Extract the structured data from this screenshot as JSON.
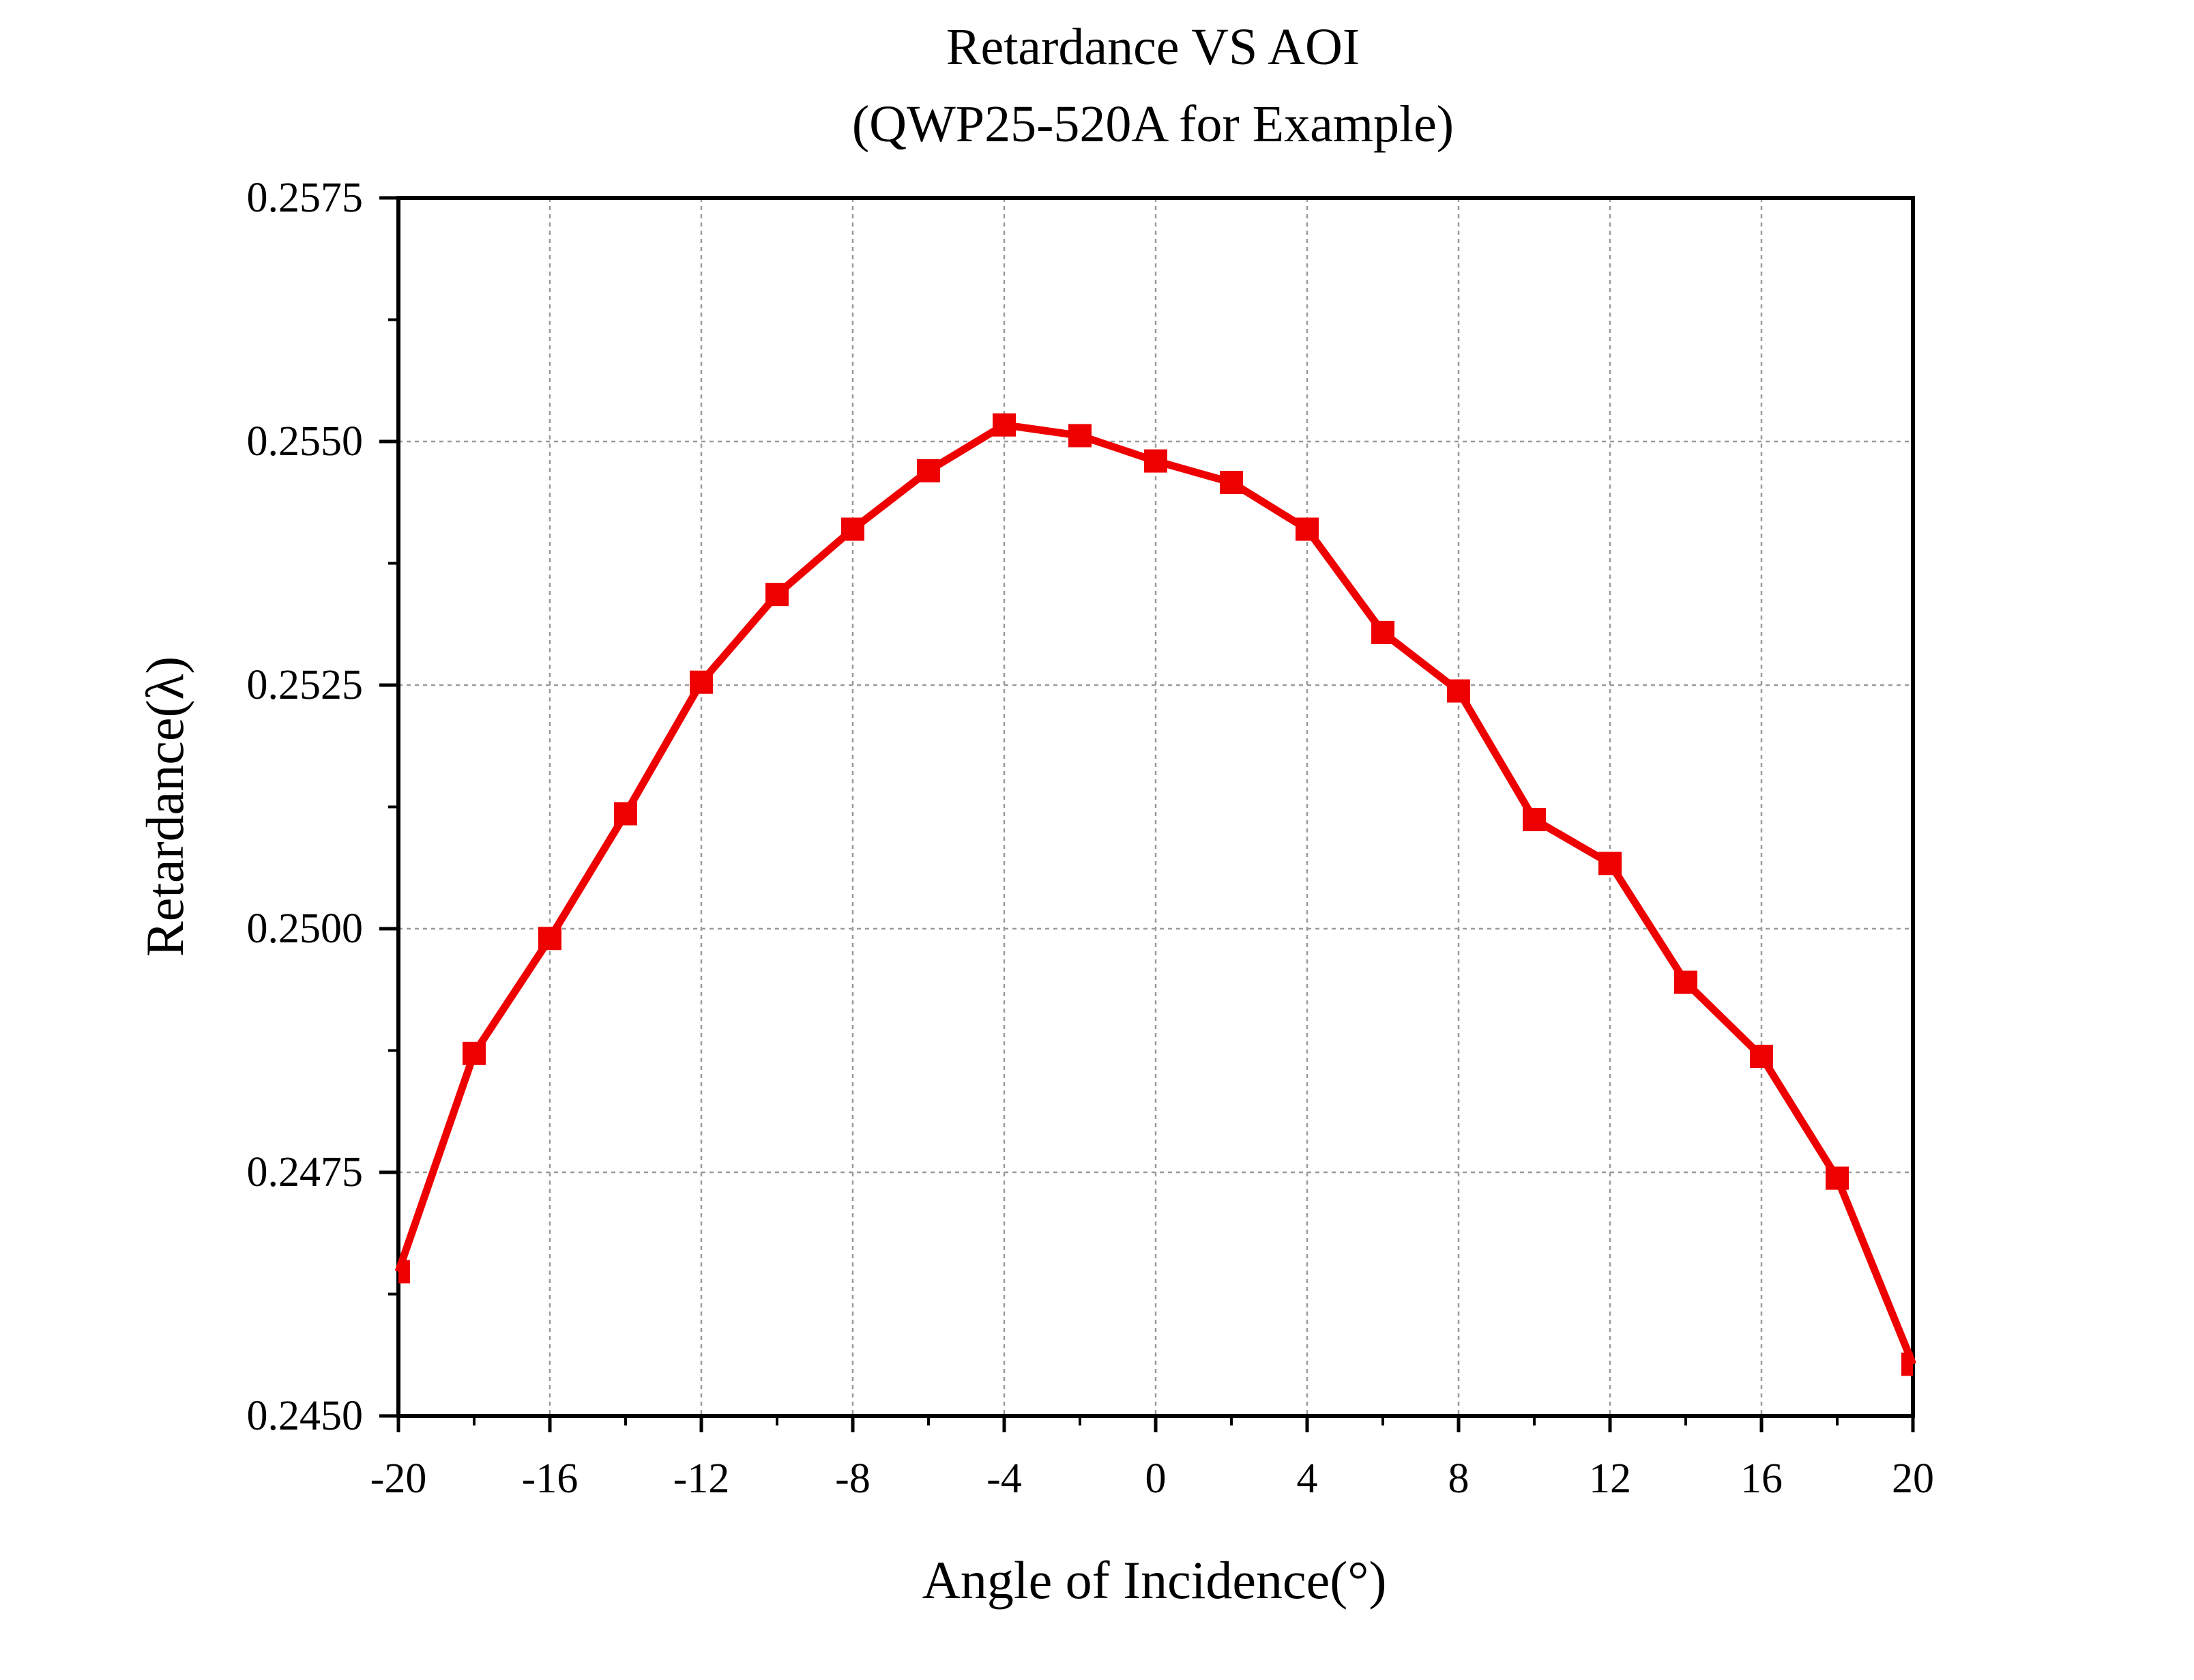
{
  "chart_data": {
    "type": "line",
    "title": "Retardance VS AOI",
    "subtitle": "(QWP25-520A for Example)",
    "xlabel": "Angle of Incidence(°)",
    "ylabel": "Retardance(λ)",
    "xlim": [
      -20,
      20
    ],
    "ylim": [
      0.245,
      0.2575
    ],
    "x_ticks": [
      -20,
      -16,
      -12,
      -8,
      -4,
      0,
      4,
      8,
      12,
      16,
      20
    ],
    "x_tick_labels": [
      "-20",
      "-16",
      "-12",
      "-8",
      "-4",
      "0",
      "4",
      "8",
      "12",
      "16",
      "20"
    ],
    "y_ticks": [
      0.245,
      0.2475,
      0.25,
      0.2525,
      0.255,
      0.2575
    ],
    "y_tick_labels": [
      "0.2450",
      "0.2475",
      "0.2500",
      "0.2525",
      "0.2550",
      "0.2575"
    ],
    "grid": true,
    "legend": "none",
    "series": [
      {
        "color": "#ee0000",
        "marker": "square",
        "x": [
          -20,
          -18,
          -16,
          -14,
          -12,
          -10,
          -8,
          -6,
          -4,
          -2,
          0,
          2,
          4,
          6,
          8,
          10,
          12,
          14,
          16,
          18,
          20
        ],
        "values": [
          0.24648,
          0.24872,
          0.2499,
          0.25118,
          0.25253,
          0.25343,
          0.2541,
          0.2547,
          0.25517,
          0.25506,
          0.2548,
          0.25458,
          0.2541,
          0.25304,
          0.25244,
          0.25112,
          0.25067,
          0.24945,
          0.24869,
          0.24744,
          0.24553
        ]
      }
    ]
  }
}
